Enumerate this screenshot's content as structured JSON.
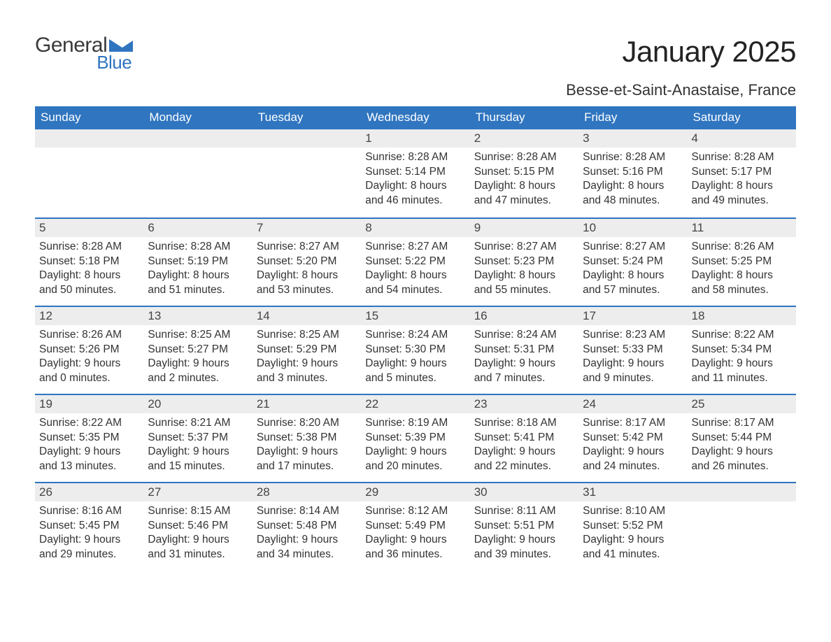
{
  "logo": {
    "text_top": "General",
    "text_sub": "Blue",
    "triangle_color": "#2f75c0"
  },
  "title": "January 2025",
  "subtitle": "Besse-et-Saint-Anastaise, France",
  "colors": {
    "header_bg": "#2f75c0",
    "header_text": "#ffffff",
    "daynum_bg": "#ededed",
    "week_border": "#2f75c0",
    "body_text": "#333333",
    "page_bg": "#ffffff"
  },
  "typography": {
    "title_fontsize": 42,
    "subtitle_fontsize": 22,
    "header_fontsize": 17,
    "daynum_fontsize": 17,
    "body_fontsize": 15.5,
    "font_family": "Arial"
  },
  "day_headers": [
    "Sunday",
    "Monday",
    "Tuesday",
    "Wednesday",
    "Thursday",
    "Friday",
    "Saturday"
  ],
  "weeks": [
    [
      {
        "blank": true
      },
      {
        "blank": true
      },
      {
        "blank": true
      },
      {
        "num": "1",
        "sunrise": "8:28 AM",
        "sunset": "5:14 PM",
        "daylight": "8 hours and 46 minutes."
      },
      {
        "num": "2",
        "sunrise": "8:28 AM",
        "sunset": "5:15 PM",
        "daylight": "8 hours and 47 minutes."
      },
      {
        "num": "3",
        "sunrise": "8:28 AM",
        "sunset": "5:16 PM",
        "daylight": "8 hours and 48 minutes."
      },
      {
        "num": "4",
        "sunrise": "8:28 AM",
        "sunset": "5:17 PM",
        "daylight": "8 hours and 49 minutes."
      }
    ],
    [
      {
        "num": "5",
        "sunrise": "8:28 AM",
        "sunset": "5:18 PM",
        "daylight": "8 hours and 50 minutes."
      },
      {
        "num": "6",
        "sunrise": "8:28 AM",
        "sunset": "5:19 PM",
        "daylight": "8 hours and 51 minutes."
      },
      {
        "num": "7",
        "sunrise": "8:27 AM",
        "sunset": "5:20 PM",
        "daylight": "8 hours and 53 minutes."
      },
      {
        "num": "8",
        "sunrise": "8:27 AM",
        "sunset": "5:22 PM",
        "daylight": "8 hours and 54 minutes."
      },
      {
        "num": "9",
        "sunrise": "8:27 AM",
        "sunset": "5:23 PM",
        "daylight": "8 hours and 55 minutes."
      },
      {
        "num": "10",
        "sunrise": "8:27 AM",
        "sunset": "5:24 PM",
        "daylight": "8 hours and 57 minutes."
      },
      {
        "num": "11",
        "sunrise": "8:26 AM",
        "sunset": "5:25 PM",
        "daylight": "8 hours and 58 minutes."
      }
    ],
    [
      {
        "num": "12",
        "sunrise": "8:26 AM",
        "sunset": "5:26 PM",
        "daylight": "9 hours and 0 minutes."
      },
      {
        "num": "13",
        "sunrise": "8:25 AM",
        "sunset": "5:27 PM",
        "daylight": "9 hours and 2 minutes."
      },
      {
        "num": "14",
        "sunrise": "8:25 AM",
        "sunset": "5:29 PM",
        "daylight": "9 hours and 3 minutes."
      },
      {
        "num": "15",
        "sunrise": "8:24 AM",
        "sunset": "5:30 PM",
        "daylight": "9 hours and 5 minutes."
      },
      {
        "num": "16",
        "sunrise": "8:24 AM",
        "sunset": "5:31 PM",
        "daylight": "9 hours and 7 minutes."
      },
      {
        "num": "17",
        "sunrise": "8:23 AM",
        "sunset": "5:33 PM",
        "daylight": "9 hours and 9 minutes."
      },
      {
        "num": "18",
        "sunrise": "8:22 AM",
        "sunset": "5:34 PM",
        "daylight": "9 hours and 11 minutes."
      }
    ],
    [
      {
        "num": "19",
        "sunrise": "8:22 AM",
        "sunset": "5:35 PM",
        "daylight": "9 hours and 13 minutes."
      },
      {
        "num": "20",
        "sunrise": "8:21 AM",
        "sunset": "5:37 PM",
        "daylight": "9 hours and 15 minutes."
      },
      {
        "num": "21",
        "sunrise": "8:20 AM",
        "sunset": "5:38 PM",
        "daylight": "9 hours and 17 minutes."
      },
      {
        "num": "22",
        "sunrise": "8:19 AM",
        "sunset": "5:39 PM",
        "daylight": "9 hours and 20 minutes."
      },
      {
        "num": "23",
        "sunrise": "8:18 AM",
        "sunset": "5:41 PM",
        "daylight": "9 hours and 22 minutes."
      },
      {
        "num": "24",
        "sunrise": "8:17 AM",
        "sunset": "5:42 PM",
        "daylight": "9 hours and 24 minutes."
      },
      {
        "num": "25",
        "sunrise": "8:17 AM",
        "sunset": "5:44 PM",
        "daylight": "9 hours and 26 minutes."
      }
    ],
    [
      {
        "num": "26",
        "sunrise": "8:16 AM",
        "sunset": "5:45 PM",
        "daylight": "9 hours and 29 minutes."
      },
      {
        "num": "27",
        "sunrise": "8:15 AM",
        "sunset": "5:46 PM",
        "daylight": "9 hours and 31 minutes."
      },
      {
        "num": "28",
        "sunrise": "8:14 AM",
        "sunset": "5:48 PM",
        "daylight": "9 hours and 34 minutes."
      },
      {
        "num": "29",
        "sunrise": "8:12 AM",
        "sunset": "5:49 PM",
        "daylight": "9 hours and 36 minutes."
      },
      {
        "num": "30",
        "sunrise": "8:11 AM",
        "sunset": "5:51 PM",
        "daylight": "9 hours and 39 minutes."
      },
      {
        "num": "31",
        "sunrise": "8:10 AM",
        "sunset": "5:52 PM",
        "daylight": "9 hours and 41 minutes."
      },
      {
        "blank": true
      }
    ]
  ],
  "labels": {
    "sunrise": "Sunrise: ",
    "sunset": "Sunset: ",
    "daylight": "Daylight: "
  }
}
